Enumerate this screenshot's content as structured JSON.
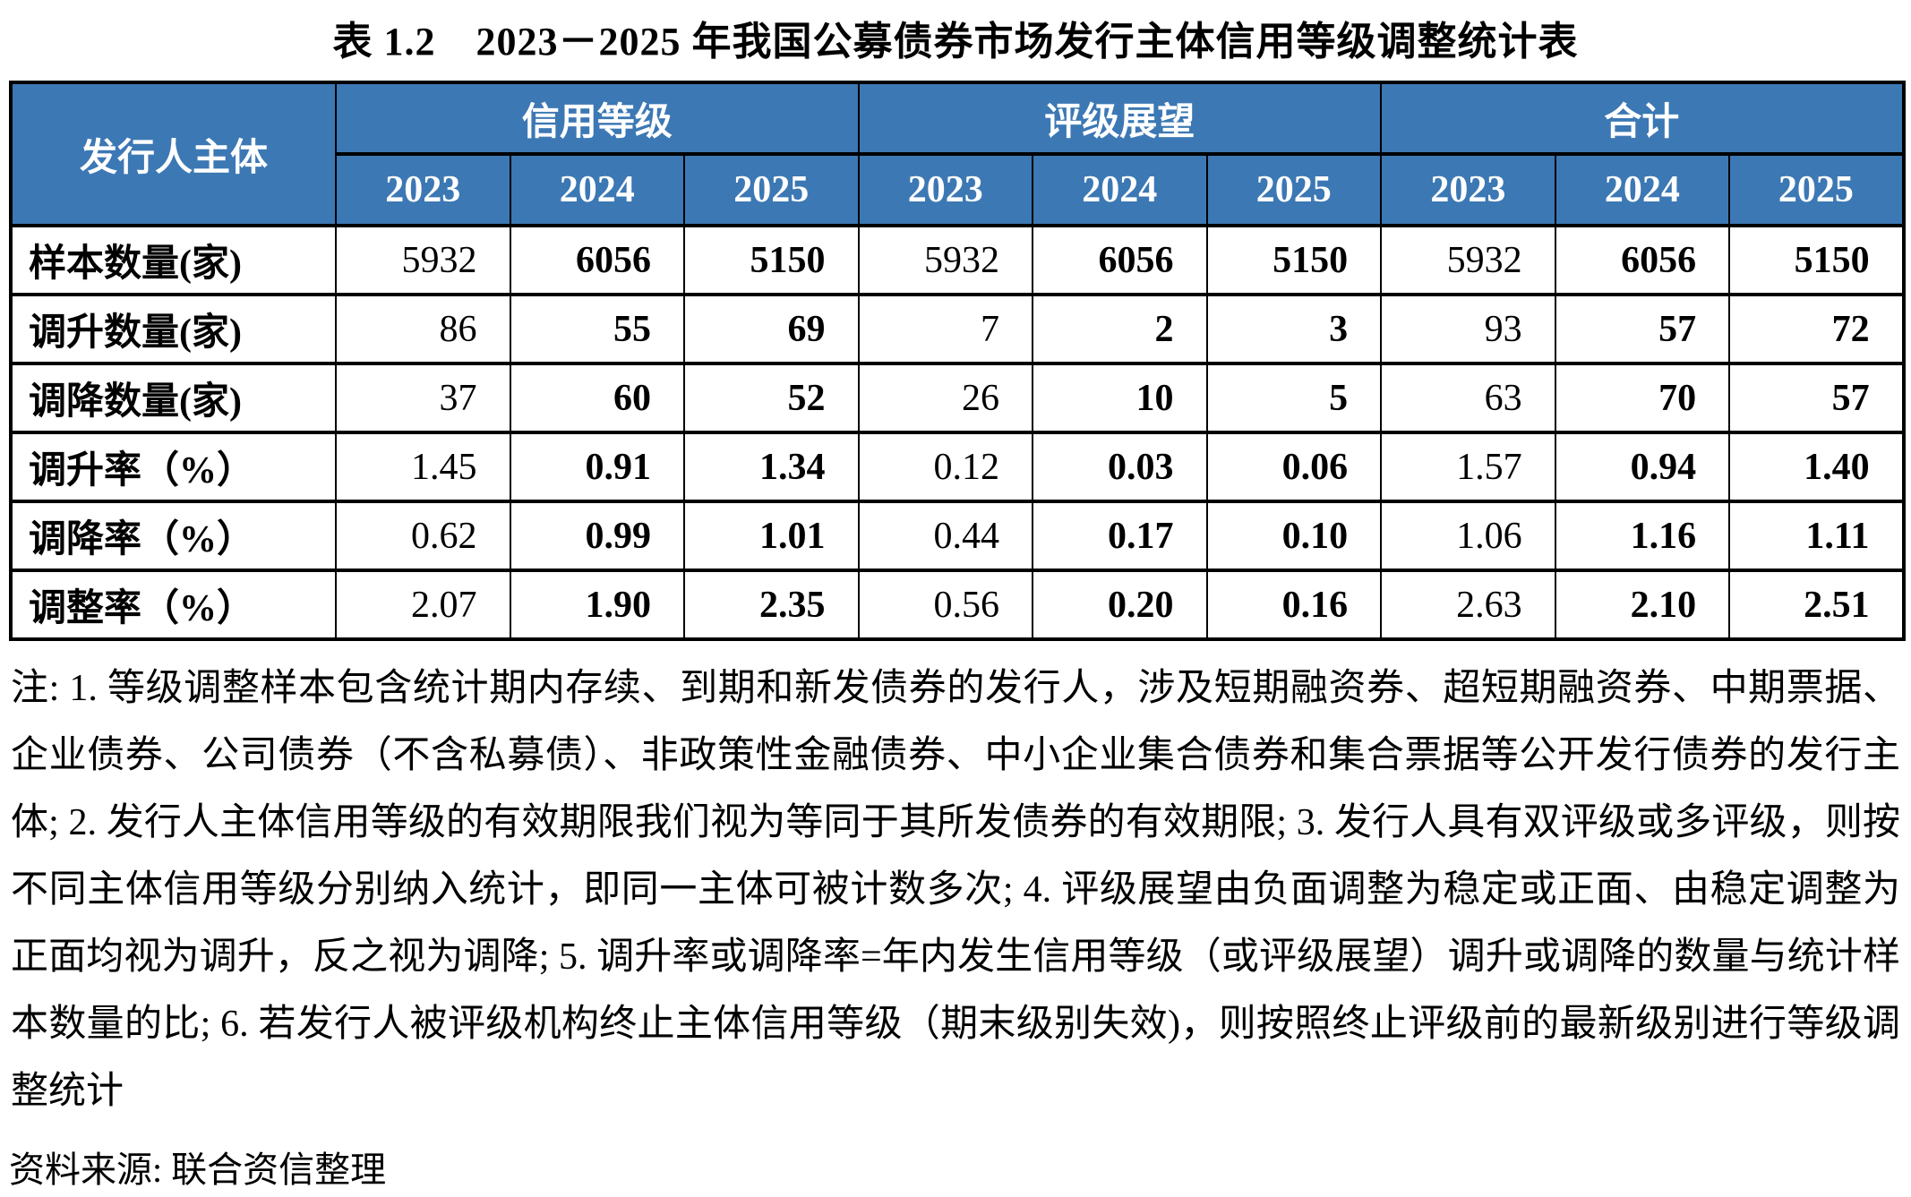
{
  "title": "表 1.2　2023－2025 年我国公募债券市场发行主体信用等级调整统计表",
  "colors": {
    "header_bg": "#3C78B4",
    "header_text": "#FFFFFF",
    "border": "#000000"
  },
  "table": {
    "corner_header": "发行人主体",
    "groups": [
      {
        "label": "信用等级",
        "years": [
          "2023",
          "2024",
          "2025"
        ]
      },
      {
        "label": "评级展望",
        "years": [
          "2023",
          "2024",
          "2025"
        ]
      },
      {
        "label": "合计",
        "years": [
          "2023",
          "2024",
          "2025"
        ]
      }
    ],
    "rows": [
      {
        "label": "样本数量(家)",
        "values": [
          "5932",
          "6056",
          "5150",
          "5932",
          "6056",
          "5150",
          "5932",
          "6056",
          "5150"
        ]
      },
      {
        "label": "调升数量(家)",
        "values": [
          "86",
          "55",
          "69",
          "7",
          "2",
          "3",
          "93",
          "57",
          "72"
        ]
      },
      {
        "label": "调降数量(家)",
        "values": [
          "37",
          "60",
          "52",
          "26",
          "10",
          "5",
          "63",
          "70",
          "57"
        ]
      },
      {
        "label": "调升率（%）",
        "values": [
          "1.45",
          "0.91",
          "1.34",
          "0.12",
          "0.03",
          "0.06",
          "1.57",
          "0.94",
          "1.40"
        ]
      },
      {
        "label": "调降率（%）",
        "values": [
          "0.62",
          "0.99",
          "1.01",
          "0.44",
          "0.17",
          "0.10",
          "1.06",
          "1.16",
          "1.11"
        ]
      },
      {
        "label": "调整率（%）",
        "values": [
          "2.07",
          "1.90",
          "2.35",
          "0.56",
          "0.20",
          "0.16",
          "2.63",
          "2.10",
          "2.51"
        ]
      }
    ]
  },
  "notes": "注: 1. 等级调整样本包含统计期内存续、到期和新发债券的发行人，涉及短期融资券、超短期融资券、中期票据、企业债券、公司债券（不含私募债）、非政策性金融债券、中小企业集合债券和集合票据等公开发行债券的发行主体; 2. 发行人主体信用等级的有效期限我们视为等同于其所发债券的有效期限; 3. 发行人具有双评级或多评级，则按不同主体信用等级分别纳入统计，即同一主体可被计数多次; 4. 评级展望由负面调整为稳定或正面、由稳定调整为正面均视为调升，反之视为调降; 5. 调升率或调降率=年内发生信用等级（或评级展望）调升或调降的数量与统计样本数量的比; 6. 若发行人被评级机构终止主体信用等级（期末级别失效)，则按照终止评级前的最新级别进行等级调整统计",
  "source": "资料来源: 联合资信整理"
}
